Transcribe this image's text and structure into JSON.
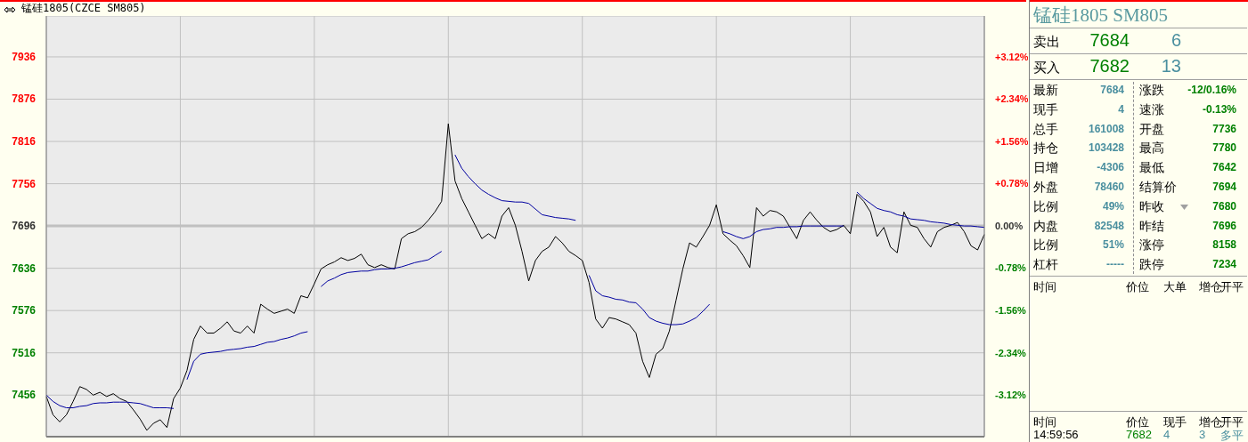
{
  "chart_data": [
    {
      "type": "line",
      "title": "锰硅1805(CZCE SM805)",
      "categories": [
        null,
        null,
        null,
        null,
        null,
        null,
        null,
        null,
        null,
        null,
        null,
        null,
        null,
        null,
        null,
        null,
        null,
        null,
        null,
        null,
        null,
        null,
        null,
        null,
        null,
        null,
        null,
        null,
        null,
        null,
        null,
        null,
        null,
        null,
        null,
        null,
        null,
        null,
        null,
        null,
        null,
        null,
        null,
        null,
        null,
        null,
        null,
        null,
        null,
        null,
        null,
        null,
        null,
        null,
        null,
        null,
        null,
        null,
        null,
        null,
        null,
        null,
        null,
        null,
        null,
        null,
        null,
        null,
        null,
        null,
        null,
        null,
        null,
        null,
        null,
        null,
        null,
        null,
        null,
        null,
        null,
        null,
        null,
        null,
        null,
        null,
        null,
        null,
        null,
        null,
        null,
        null,
        null,
        null,
        null,
        null,
        null,
        null,
        null,
        null,
        null,
        null,
        null,
        null,
        null,
        null,
        null,
        null,
        null,
        null,
        null,
        null,
        null,
        null,
        null,
        null,
        null,
        null,
        null,
        null,
        null,
        null,
        null,
        null,
        null,
        null,
        null,
        null,
        null,
        null,
        null,
        null,
        null,
        null,
        null,
        null,
        null,
        null,
        null,
        null,
        null
      ],
      "series": [
        {
          "color": "#000000",
          "values": [
            7454,
            7428,
            7418,
            7428,
            7447,
            7468,
            7464,
            7456,
            7460,
            7454,
            7458,
            7451,
            7447,
            7435,
            7422,
            7406,
            7416,
            7421,
            7410,
            7451,
            7466,
            7491,
            7535,
            7554,
            7544,
            7544,
            7551,
            7560,
            7547,
            7544,
            7554,
            7544,
            7585,
            7578,
            7572,
            7575,
            7578,
            7572,
            7597,
            7594,
            7614,
            7635,
            7641,
            7645,
            7651,
            7647,
            7650,
            7656,
            7641,
            7637,
            7641,
            7637,
            7635,
            7678,
            7685,
            7688,
            7694,
            7704,
            7716,
            7731,
            7841,
            7760,
            7735,
            7716,
            7697,
            7678,
            7685,
            7678,
            7710,
            7722,
            7697,
            7660,
            7618,
            7647,
            7660,
            7666,
            7681,
            7672,
            7660,
            7654,
            7647,
            7616,
            7564,
            7551,
            7566,
            7564,
            7560,
            7556,
            7544,
            7504,
            7481,
            7514,
            7522,
            7547,
            7591,
            7635,
            7672,
            7666,
            7681,
            7697,
            7726,
            7685,
            7676,
            7668,
            7654,
            7637,
            7722,
            7710,
            7718,
            7716,
            7710,
            7694,
            7678,
            7704,
            7716,
            7704,
            7694,
            7688,
            7691,
            7697,
            7685,
            7741,
            7731,
            7716,
            7681,
            7694,
            7666,
            7658,
            7716,
            7697,
            7694,
            7678,
            7666,
            7688,
            7694,
            7697,
            7701,
            7688,
            7668,
            7662,
            7684
          ]
        },
        {
          "color": "#0000a0",
          "values": [
            7456,
            7447,
            7441,
            7438,
            7438,
            7440,
            7441,
            7444,
            7445,
            7445,
            7446,
            7446,
            7446,
            7445,
            7444,
            7441,
            7438,
            7438,
            7438,
            7437,
            null,
            7478,
            7504,
            7514,
            7516,
            7517,
            7518,
            7520,
            7521,
            7522,
            7524,
            7525,
            7528,
            7531,
            7532,
            7535,
            7537,
            7540,
            7544,
            7546,
            null,
            7610,
            7618,
            7622,
            7627,
            7630,
            7631,
            7632,
            7632,
            7634,
            7635,
            7635,
            7636,
            7638,
            7641,
            7644,
            7646,
            7648,
            7654,
            7660,
            null,
            7797,
            7778,
            7766,
            7756,
            7747,
            7741,
            7736,
            7732,
            7731,
            7730,
            7730,
            7728,
            7720,
            7712,
            7710,
            7708,
            7707,
            7706,
            7704,
            null,
            7626,
            7604,
            7597,
            7595,
            7592,
            7591,
            7588,
            7587,
            7578,
            7566,
            7561,
            7558,
            7556,
            7556,
            7557,
            7561,
            7566,
            7575,
            7585,
            null,
            7688,
            7685,
            7681,
            7678,
            7681,
            7688,
            7691,
            7692,
            7694,
            7694,
            7695,
            7695,
            7696,
            7696,
            7696,
            7696,
            7696,
            7696,
            7696,
            null,
            7744,
            7735,
            7728,
            7721,
            7718,
            7716,
            7712,
            7710,
            7706,
            7705,
            7704,
            7702,
            7701,
            7700,
            7698,
            7697,
            7696,
            7696,
            7695,
            7694
          ]
        }
      ],
      "ylim": [
        7397,
        7994
      ],
      "yticks": [
        7456,
        7516,
        7576,
        7636,
        7696,
        7756,
        7816,
        7876,
        7936
      ],
      "y2lim": [
        -3.89,
        3.87
      ],
      "y2ticks": [
        {
          "value": -3.12,
          "label": "-3.12%"
        },
        {
          "value": -2.34,
          "label": "-2.34%"
        },
        {
          "value": -1.56,
          "label": "-1.56%"
        },
        {
          "value": -0.78,
          "label": "-0.78%"
        },
        {
          "value": 0,
          "label": "0.00%"
        },
        {
          "value": 0.78,
          "label": "+0.78%"
        },
        {
          "value": 1.56,
          "label": "+1.56%"
        },
        {
          "value": 2.34,
          "label": "+2.34%"
        },
        {
          "value": 3.12,
          "label": "+3.12%"
        }
      ],
      "ref_lines": [
        {
          "axis": "y",
          "value": 7696,
          "color": "#c0c0c0"
        }
      ],
      "grid": true,
      "marker": "none",
      "line_style": "solid"
    },
    {
      "type": "other",
      "title": "锰硅1805 SM805",
      "annotations": [
        "卖出",
        "7684",
        "6",
        "买入",
        "7682",
        "13",
        "最新",
        "7684",
        "涨跌",
        "-12/0.16%",
        "现手",
        "4",
        "速涨",
        "-0.13%",
        "总手",
        "161008",
        "开盘",
        "7736",
        "持仓",
        "103428",
        "最高",
        "7780",
        "日增",
        "-4306",
        "最低",
        "7642",
        "外盘",
        "78460",
        "结算价",
        "7694",
        "比例",
        "49%",
        "昨收",
        "7680",
        "内盘",
        "82548",
        "昨结",
        "7696",
        "比例",
        "51%",
        "涨停",
        "8158",
        "杠杆",
        "-----",
        "跌停",
        "7234",
        "时间",
        "价位",
        "大单",
        "增仓",
        "开平",
        "时间",
        "价位",
        "现手",
        "增仓",
        "开平",
        "14:59:56",
        "7682",
        "4",
        "3",
        "多平"
      ]
    }
  ]
}
